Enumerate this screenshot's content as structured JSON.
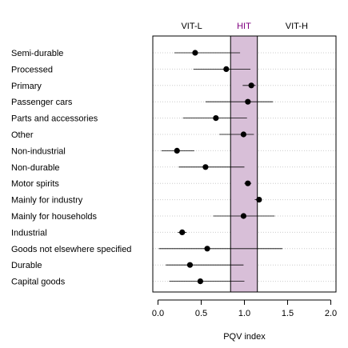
{
  "chart_data": {
    "type": "scatter",
    "xlabel": "PQV index",
    "xlim": [
      -0.06,
      2.06
    ],
    "xticks": [
      0.0,
      0.5,
      1.0,
      1.5,
      2.0
    ],
    "xtick_labels": [
      "0.0",
      "0.5",
      "1.0",
      "1.5",
      "2.0"
    ],
    "grid": "horizontal dotted",
    "band": {
      "label": "HIT",
      "x_start": 0.84,
      "x_end": 1.15,
      "color": "#d8bfd8",
      "label_color": "#800080"
    },
    "band_labels": {
      "left": "VIT-L",
      "right": "VIT-H"
    },
    "categories": [
      "Semi-durable",
      "Processed",
      "Primary",
      "Passenger cars",
      "Parts and accessories",
      "Other",
      "Non-industrial",
      "Non-durable",
      "Motor spirits",
      "Mainly for industry",
      "Mainly for households",
      "Industrial",
      "Goods not elsewhere specified",
      "Durable",
      "Capital goods"
    ],
    "points": [
      {
        "x": 0.43,
        "low": 0.19,
        "high": 0.95
      },
      {
        "x": 0.79,
        "low": 0.41,
        "high": 1.07
      },
      {
        "x": 1.08,
        "low": 0.98,
        "high": 1.13
      },
      {
        "x": 1.04,
        "low": 0.55,
        "high": 1.33
      },
      {
        "x": 0.67,
        "low": 0.29,
        "high": 1.03
      },
      {
        "x": 0.99,
        "low": 0.71,
        "high": 1.11
      },
      {
        "x": 0.22,
        "low": 0.04,
        "high": 0.42
      },
      {
        "x": 0.55,
        "low": 0.24,
        "high": 1.0
      },
      {
        "x": 1.04,
        "low": 1.0,
        "high": 1.08
      },
      {
        "x": 1.17,
        "low": 1.12,
        "high": 1.2
      },
      {
        "x": 0.99,
        "low": 0.64,
        "high": 1.35
      },
      {
        "x": 0.28,
        "low": 0.23,
        "high": 0.33
      },
      {
        "x": 0.57,
        "low": 0.01,
        "high": 1.44
      },
      {
        "x": 0.37,
        "low": 0.09,
        "high": 0.99
      },
      {
        "x": 0.49,
        "low": 0.13,
        "high": 1.0
      }
    ]
  }
}
